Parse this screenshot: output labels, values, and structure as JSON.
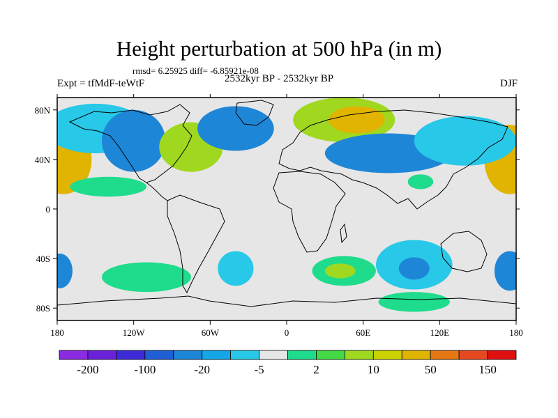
{
  "title": "Height perturbation at 500 hPa (in m)",
  "stats_line": "rmsd= 6.25925 diff= -6.85921e-08",
  "experiment_label": "Expt = tfMdF-teWtF",
  "period_label": "2532kyr BP - 2532kyr BP",
  "season_label": "DJF",
  "map": {
    "projection": "cylindrical-equidistant",
    "lon_range": [
      -180,
      180
    ],
    "lat_range": [
      -90,
      90
    ],
    "lon_ticks": [
      {
        "value": -180,
        "label": "180"
      },
      {
        "value": -120,
        "label": "120W"
      },
      {
        "value": -60,
        "label": "60W"
      },
      {
        "value": 0,
        "label": "0"
      },
      {
        "value": 60,
        "label": "60E"
      },
      {
        "value": 120,
        "label": "120E"
      },
      {
        "value": 180,
        "label": "180"
      }
    ],
    "lat_ticks": [
      {
        "value": 80,
        "label": "80N"
      },
      {
        "value": 40,
        "label": "40N"
      },
      {
        "value": 0,
        "label": "0"
      },
      {
        "value": -40,
        "label": "40S"
      },
      {
        "value": -80,
        "label": "80S"
      }
    ],
    "background_color": "#e6e6e6",
    "coastline_color": "#000000",
    "anomaly_regions": [
      {
        "name": "pacific-ne-high",
        "lon": -175,
        "lat": 40,
        "rlon": 22,
        "rlat": 28,
        "level": 50
      },
      {
        "name": "pacific-ne-high-core",
        "lon": -177,
        "lat": 40,
        "rlon": 12,
        "rlat": 16,
        "level": 50
      },
      {
        "name": "pacific-nw-high",
        "lon": 175,
        "lat": 40,
        "rlon": 20,
        "rlat": 28,
        "level": 50
      },
      {
        "name": "pacific-nw-high-core",
        "lon": 178,
        "lat": 40,
        "rlon": 10,
        "rlat": 15,
        "level": 50
      },
      {
        "name": "arctic-ne-low",
        "lon": -150,
        "lat": 65,
        "rlon": 40,
        "rlat": 20,
        "level": -5
      },
      {
        "name": "na-low-west",
        "lon": -120,
        "lat": 55,
        "rlon": 25,
        "rlat": 25,
        "level": -20
      },
      {
        "name": "na-high",
        "lon": -75,
        "lat": 50,
        "rlon": 25,
        "rlat": 20,
        "level": 10
      },
      {
        "name": "na-high-core",
        "lon": -78,
        "lat": 52,
        "rlon": 12,
        "rlat": 10,
        "level": 10
      },
      {
        "name": "atlantic-low",
        "lon": -40,
        "lat": 65,
        "rlon": 30,
        "rlat": 18,
        "level": -20
      },
      {
        "name": "eurasia-high",
        "lon": 45,
        "lat": 72,
        "rlon": 40,
        "rlat": 18,
        "level": 10
      },
      {
        "name": "eurasia-high-core",
        "lon": 55,
        "lat": 72,
        "rlon": 22,
        "rlat": 11,
        "level": 50
      },
      {
        "name": "asia-low",
        "lon": 80,
        "lat": 45,
        "rlon": 50,
        "rlat": 16,
        "level": -20
      },
      {
        "name": "asia-low-east",
        "lon": 140,
        "lat": 55,
        "rlon": 40,
        "rlat": 20,
        "level": -5
      },
      {
        "name": "eq-pacific-east",
        "lon": -140,
        "lat": 18,
        "rlon": 30,
        "rlat": 8,
        "level": 2
      },
      {
        "name": "tibet-blob",
        "lon": 105,
        "lat": 22,
        "rlon": 10,
        "rlat": 6,
        "level": 2
      },
      {
        "name": "so-pacific-east",
        "lon": -110,
        "lat": -55,
        "rlon": 35,
        "rlat": 12,
        "level": 2
      },
      {
        "name": "so-pacific-east-core",
        "lon": -105,
        "lat": -55,
        "rlon": 18,
        "rlat": 6,
        "level": 2
      },
      {
        "name": "so-atlantic-low",
        "lon": -40,
        "lat": -48,
        "rlon": 14,
        "rlat": 14,
        "level": -5
      },
      {
        "name": "so-indian-high",
        "lon": 45,
        "lat": -50,
        "rlon": 25,
        "rlat": 12,
        "level": 2
      },
      {
        "name": "so-indian-high-core",
        "lon": 42,
        "lat": -50,
        "rlon": 12,
        "rlat": 6,
        "level": 10
      },
      {
        "name": "australia-low",
        "lon": 100,
        "lat": -45,
        "rlon": 30,
        "rlat": 20,
        "level": -5
      },
      {
        "name": "australia-low-core",
        "lon": 100,
        "lat": -48,
        "rlon": 12,
        "rlat": 9,
        "level": -20
      },
      {
        "name": "antarctic-high",
        "lon": 100,
        "lat": -75,
        "rlon": 28,
        "rlat": 8,
        "level": 2
      },
      {
        "name": "sw-pacific-low",
        "lon": 175,
        "lat": -50,
        "rlon": 12,
        "rlat": 16,
        "level": -20
      },
      {
        "name": "sw-pacific-low-west",
        "lon": -178,
        "lat": -50,
        "rlon": 10,
        "rlat": 14,
        "level": -20
      }
    ]
  },
  "colorbar": {
    "colors": [
      "#8a2be2",
      "#6a22d8",
      "#3b2ad6",
      "#1f5fd6",
      "#1e86d6",
      "#14a6e6",
      "#28c8e8",
      "#e6e6e6",
      "#1edc8c",
      "#44d844",
      "#a0d820",
      "#cad200",
      "#e0b400",
      "#e67814",
      "#e64820",
      "#e01010"
    ],
    "labels": [
      {
        "boundary": 1,
        "text": "-200"
      },
      {
        "boundary": 3,
        "text": "-100"
      },
      {
        "boundary": 5,
        "text": "-20"
      },
      {
        "boundary": 7,
        "text": "-5"
      },
      {
        "boundary": 9,
        "text": "2"
      },
      {
        "boundary": 11,
        "text": "10"
      },
      {
        "boundary": 13,
        "text": "50"
      },
      {
        "boundary": 15,
        "text": "150"
      }
    ],
    "level_colors": {
      "-20": "#1e86d6",
      "-5": "#28c8e8",
      "2": "#1edc8c",
      "10": "#a0d820",
      "50": "#e0b400"
    }
  }
}
